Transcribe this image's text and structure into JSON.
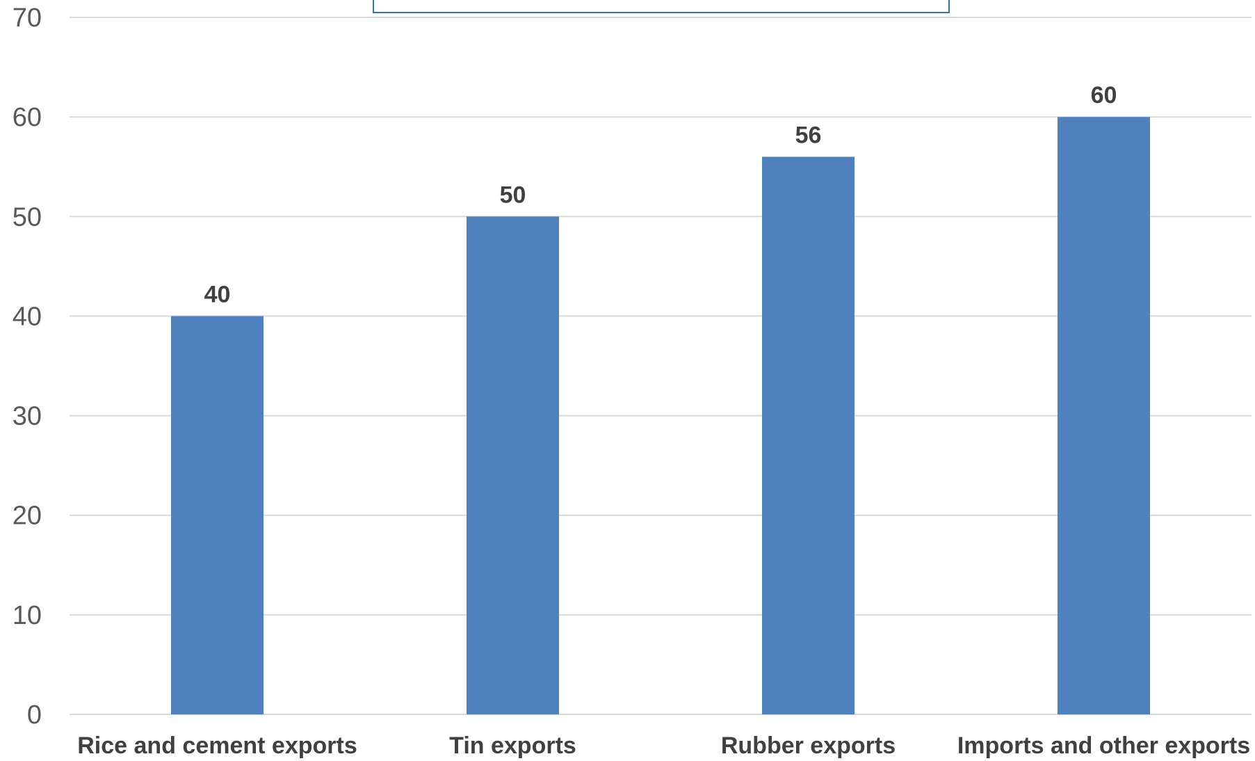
{
  "chart_data": {
    "type": "bar",
    "title": "",
    "xlabel": "",
    "ylabel": "",
    "categories": [
      "Rice and cement exports",
      "Tin exports",
      "Rubber exports",
      "Imports and other exports"
    ],
    "values": [
      40,
      50,
      56,
      60
    ],
    "data_labels": [
      "40",
      "50",
      "56",
      "60"
    ],
    "ylim": [
      0,
      70
    ],
    "yticks": [
      0,
      10,
      20,
      30,
      40,
      50,
      60,
      70
    ],
    "grid": true,
    "legend": "none",
    "colors": {
      "bar": "#4f81bd",
      "grid": "#d9d9d9",
      "title_border": "#2e75b6"
    }
  }
}
